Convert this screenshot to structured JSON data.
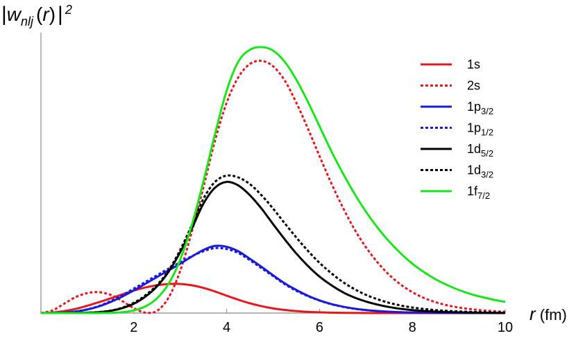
{
  "chart_data": {
    "type": "line",
    "ylabel": {
      "bar": "|",
      "symbol": "w",
      "subscript": "nlj",
      "open": "(",
      "arg": "r",
      "close": ")",
      "bar2": "|",
      "power": "2"
    },
    "xlabel": {
      "symbol": "r",
      "unit": " (fm)"
    },
    "xlim": [
      0,
      10
    ],
    "x_ticks": [
      "2",
      "4",
      "6",
      "8",
      "10"
    ],
    "y_ticks": [],
    "grid": false,
    "legend_position": "top-right",
    "x": [
      0,
      0.25,
      0.5,
      0.75,
      1,
      1.25,
      1.5,
      1.75,
      2,
      2.25,
      2.5,
      2.75,
      3,
      3.25,
      3.5,
      3.75,
      4,
      4.25,
      4.5,
      4.75,
      5,
      5.25,
      5.5,
      5.75,
      6,
      6.25,
      6.5,
      6.75,
      7,
      7.25,
      7.5,
      7.75,
      8,
      8.25,
      8.5,
      8.75,
      9,
      9.25,
      9.5,
      9.75,
      10
    ],
    "series": [
      {
        "name": "1s",
        "sub": "",
        "color": "#e8161b",
        "dashed": false,
        "values": [
          0,
          0.12,
          0.45,
          0.95,
          1.65,
          2.45,
          3.3,
          4.2,
          5.05,
          5.75,
          6.25,
          6.55,
          6.55,
          6.25,
          5.65,
          4.85,
          3.9,
          3.0,
          2.2,
          1.55,
          1.05,
          0.7,
          0.45,
          0.28,
          0.17,
          0.1,
          0.06,
          0.035,
          0.02,
          0.01,
          0.006,
          0.003,
          0.002,
          0.001,
          0,
          0,
          0,
          0,
          0,
          0,
          0
        ]
      },
      {
        "name": "2s",
        "sub": "",
        "color": "#e8161b",
        "dashed": true,
        "values": [
          0,
          0.6,
          2.1,
          3.6,
          4.5,
          4.7,
          4.1,
          2.7,
          1.1,
          0.1,
          0.5,
          3.5,
          9.5,
          18.3,
          28.3,
          38.8,
          47.3,
          53.0,
          56.0,
          56.7,
          55.5,
          52.3,
          47.3,
          41.5,
          35.3,
          29.3,
          23.8,
          18.9,
          14.8,
          11.4,
          8.6,
          6.4,
          4.7,
          3.4,
          2.45,
          1.75,
          1.25,
          0.88,
          0.62,
          0.43,
          0.3
        ]
      },
      {
        "name": "1p",
        "sub": "3/2",
        "color": "#1a1adb",
        "dashed": false,
        "values": [
          0,
          0.02,
          0.12,
          0.35,
          0.8,
          1.5,
          2.5,
          3.7,
          5.1,
          6.6,
          8.1,
          9.6,
          11.1,
          12.7,
          14.2,
          15.1,
          14.9,
          13.9,
          12.2,
          10.4,
          8.5,
          6.7,
          5.2,
          3.9,
          2.85,
          2.05,
          1.45,
          1.0,
          0.68,
          0.46,
          0.31,
          0.2,
          0.13,
          0.09,
          0.06,
          0.04,
          0.025,
          0.016,
          0.01,
          0.006,
          0.004
        ]
      },
      {
        "name": "1p",
        "sub": "1/2",
        "color": "#1a1adb",
        "dashed": true,
        "values": [
          0,
          0.02,
          0.12,
          0.37,
          0.85,
          1.6,
          2.7,
          4.0,
          5.5,
          7.0,
          8.5,
          10.0,
          11.4,
          12.8,
          13.9,
          14.6,
          14.4,
          13.5,
          11.9,
          10.1,
          8.3,
          6.5,
          5.0,
          3.8,
          2.8,
          2.0,
          1.4,
          0.97,
          0.66,
          0.44,
          0.29,
          0.19,
          0.12,
          0.08,
          0.05,
          0.035,
          0.022,
          0.014,
          0.009,
          0.006,
          0.004
        ]
      },
      {
        "name": "1d",
        "sub": "5/2",
        "color": "#000000",
        "dashed": false,
        "values": [
          0,
          0,
          0.01,
          0.03,
          0.08,
          0.2,
          0.5,
          1.1,
          2.1,
          3.7,
          6.0,
          9.3,
          13.7,
          19.0,
          24.6,
          28.2,
          29.5,
          28.7,
          26.5,
          23.5,
          20.0,
          16.6,
          13.4,
          10.6,
          8.2,
          6.3,
          4.7,
          3.5,
          2.6,
          1.9,
          1.35,
          0.95,
          0.67,
          0.47,
          0.33,
          0.23,
          0.16,
          0.11,
          0.075,
          0.05,
          0.035
        ]
      },
      {
        "name": "1d",
        "sub": "3/2",
        "color": "#000000",
        "dashed": true,
        "values": [
          0,
          0,
          0.01,
          0.03,
          0.09,
          0.23,
          0.55,
          1.2,
          2.3,
          4.0,
          6.3,
          9.6,
          14.2,
          19.8,
          25.7,
          29.5,
          30.9,
          30.5,
          29.0,
          26.5,
          23.5,
          20.2,
          17.0,
          14.0,
          11.3,
          9.0,
          7.0,
          5.4,
          4.1,
          3.1,
          2.3,
          1.7,
          1.25,
          0.92,
          0.67,
          0.49,
          0.36,
          0.26,
          0.19,
          0.14,
          0.1
        ]
      },
      {
        "name": "1f",
        "sub": "7/2",
        "color": "#19e619",
        "dashed": false,
        "values": [
          0,
          0,
          0,
          0,
          0,
          0.01,
          0.05,
          0.2,
          0.6,
          1.5,
          3.3,
          6.6,
          12.0,
          19.8,
          29.6,
          40.3,
          50.0,
          56.5,
          59.2,
          59.8,
          59.0,
          56.5,
          52.5,
          47.5,
          42.0,
          36.5,
          31.5,
          26.9,
          22.8,
          19.2,
          16.1,
          13.4,
          11.1,
          9.2,
          7.6,
          6.3,
          5.2,
          4.3,
          3.6,
          3.0,
          2.5
        ]
      }
    ]
  }
}
